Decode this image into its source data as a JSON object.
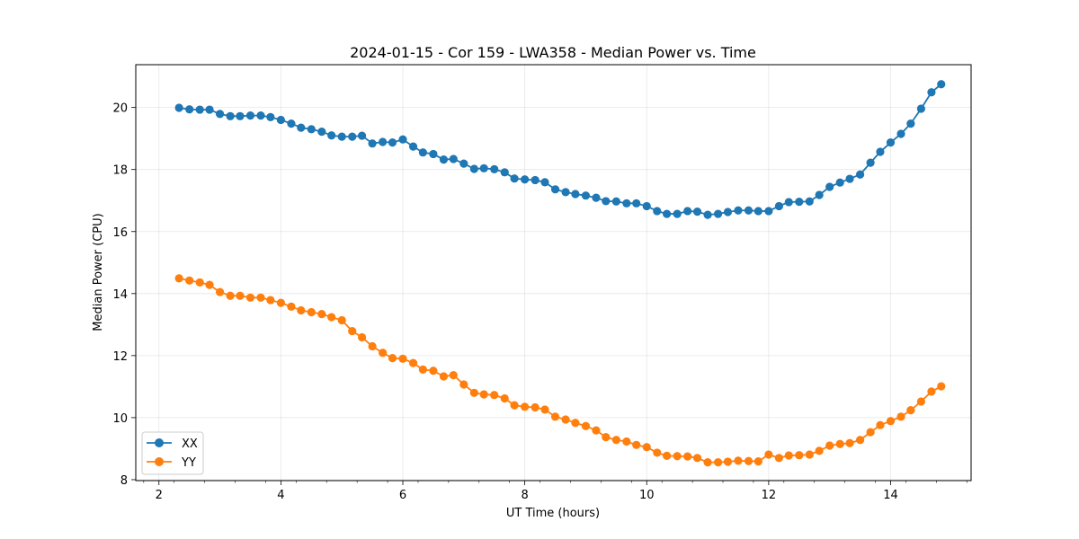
{
  "chart_data": {
    "type": "line",
    "title": "2024-01-15 - Cor 159 - LWA358 - Median Power vs. Time",
    "xlabel": "UT Time (hours)",
    "ylabel": "Median Power (CPU)",
    "xlim": [
      1.62,
      15.32
    ],
    "ylim": [
      7.97,
      21.38
    ],
    "xticks": [
      2,
      4,
      6,
      8,
      10,
      12,
      14
    ],
    "xtick_labels": [
      "2",
      "4",
      "6",
      "8",
      "10",
      "12",
      "14"
    ],
    "yticks": [
      8,
      10,
      12,
      14,
      16,
      18,
      20
    ],
    "ytick_labels": [
      "8",
      "10",
      "12",
      "14",
      "16",
      "18",
      "20"
    ],
    "grid": true,
    "legend_position": "lower-left",
    "x": [
      2.33,
      2.5,
      2.67,
      2.83,
      3.0,
      3.17,
      3.33,
      3.5,
      3.67,
      3.83,
      4.0,
      4.17,
      4.33,
      4.5,
      4.67,
      4.83,
      5.0,
      5.17,
      5.33,
      5.5,
      5.67,
      5.83,
      6.0,
      6.17,
      6.33,
      6.5,
      6.67,
      6.83,
      7.0,
      7.17,
      7.33,
      7.5,
      7.67,
      7.83,
      8.0,
      8.17,
      8.33,
      8.5,
      8.67,
      8.83,
      9.0,
      9.17,
      9.33,
      9.5,
      9.67,
      9.83,
      10.0,
      10.17,
      10.33,
      10.5,
      10.67,
      10.83,
      11.0,
      11.17,
      11.33,
      11.5,
      11.67,
      11.83,
      12.0,
      12.17,
      12.33,
      12.5,
      12.67,
      12.83,
      13.0,
      13.17,
      13.33,
      13.5,
      13.67,
      13.83,
      14.0,
      14.17,
      14.33,
      14.5,
      14.67,
      14.83
    ],
    "series": [
      {
        "name": "XX",
        "color": "#1f77b4",
        "values": [
          19.99,
          19.94,
          19.93,
          19.93,
          19.79,
          19.72,
          19.72,
          19.74,
          19.74,
          19.69,
          19.6,
          19.48,
          19.35,
          19.3,
          19.22,
          19.1,
          19.06,
          19.06,
          19.09,
          18.84,
          18.89,
          18.87,
          18.97,
          18.74,
          18.55,
          18.5,
          18.32,
          18.34,
          18.19,
          18.02,
          18.04,
          18.01,
          17.91,
          17.71,
          17.68,
          17.66,
          17.59,
          17.36,
          17.27,
          17.21,
          17.16,
          17.09,
          16.98,
          16.97,
          16.91,
          16.91,
          16.82,
          16.66,
          16.57,
          16.57,
          16.66,
          16.64,
          16.54,
          16.57,
          16.63,
          16.68,
          16.68,
          16.66,
          16.66,
          16.82,
          16.95,
          16.96,
          16.97,
          17.18,
          17.44,
          17.58,
          17.7,
          17.84,
          18.22,
          18.57,
          18.87,
          19.15,
          19.48,
          19.96,
          20.49,
          20.75
        ]
      },
      {
        "name": "YY",
        "color": "#ff7f0e",
        "values": [
          14.49,
          14.42,
          14.36,
          14.28,
          14.05,
          13.93,
          13.93,
          13.87,
          13.87,
          13.79,
          13.7,
          13.58,
          13.46,
          13.4,
          13.34,
          13.24,
          13.14,
          12.79,
          12.59,
          12.3,
          12.09,
          11.92,
          11.9,
          11.76,
          11.55,
          11.51,
          11.33,
          11.37,
          11.07,
          10.8,
          10.75,
          10.73,
          10.62,
          10.4,
          10.35,
          10.33,
          10.26,
          10.03,
          9.94,
          9.83,
          9.73,
          9.59,
          9.37,
          9.28,
          9.23,
          9.12,
          9.05,
          8.87,
          8.77,
          8.76,
          8.75,
          8.7,
          8.56,
          8.56,
          8.58,
          8.61,
          8.6,
          8.59,
          8.81,
          8.7,
          8.78,
          8.79,
          8.81,
          8.93,
          9.1,
          9.15,
          9.18,
          9.28,
          9.53,
          9.76,
          9.89,
          10.03,
          10.24,
          10.52,
          10.84,
          11.01
        ]
      }
    ]
  }
}
